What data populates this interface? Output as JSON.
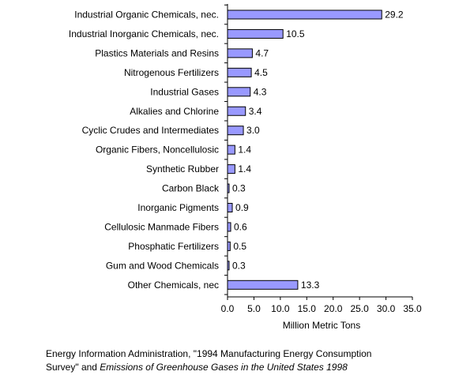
{
  "chart_data": {
    "type": "bar",
    "orientation": "horizontal",
    "categories": [
      "Industrial Organic Chemicals, nec.",
      "Industrial Inorganic Chemicals, nec.",
      "Plastics Materials and Resins",
      "Nitrogenous Fertilizers",
      "Industrial Gases",
      "Alkalies and Chlorine",
      "Cyclic Crudes and Intermediates",
      "Organic Fibers, Noncellulosic",
      "Synthetic Rubber",
      "Carbon Black",
      "Inorganic Pigments",
      "Cellulosic Manmade Fibers",
      "Phosphatic Fertilizers",
      "Gum and Wood Chemicals",
      "Other Chemicals, nec"
    ],
    "values": [
      29.2,
      10.5,
      4.7,
      4.5,
      4.3,
      3.4,
      3.0,
      1.4,
      1.4,
      0.3,
      0.9,
      0.6,
      0.5,
      0.3,
      13.3
    ],
    "value_labels": [
      "29.2",
      "10.5",
      "4.7",
      "4.5",
      "4.3",
      "3.4",
      "3.0",
      "1.4",
      "1.4",
      "0.3",
      "0.9",
      "0.6",
      "0.5",
      "0.3",
      "13.3"
    ],
    "xlim": [
      0,
      35
    ],
    "xticks": [
      "0.0",
      "5.0",
      "10.0",
      "15.0",
      "20.0",
      "25.0",
      "30.0",
      "35.0"
    ],
    "xlabel": "Million Metric Tons",
    "ylabel": "",
    "title": "",
    "grid": false,
    "legend": "none",
    "bar_color": "#9999ff",
    "bar_edge_color": "#000000"
  },
  "source": {
    "line1": "Energy Information Administration, \"1994 Manufacturing Energy Consumption",
    "line2_prefix": "Survey\" and ",
    "line2_italic": "Emissions of Greenhouse Gases in the United States 1998"
  }
}
